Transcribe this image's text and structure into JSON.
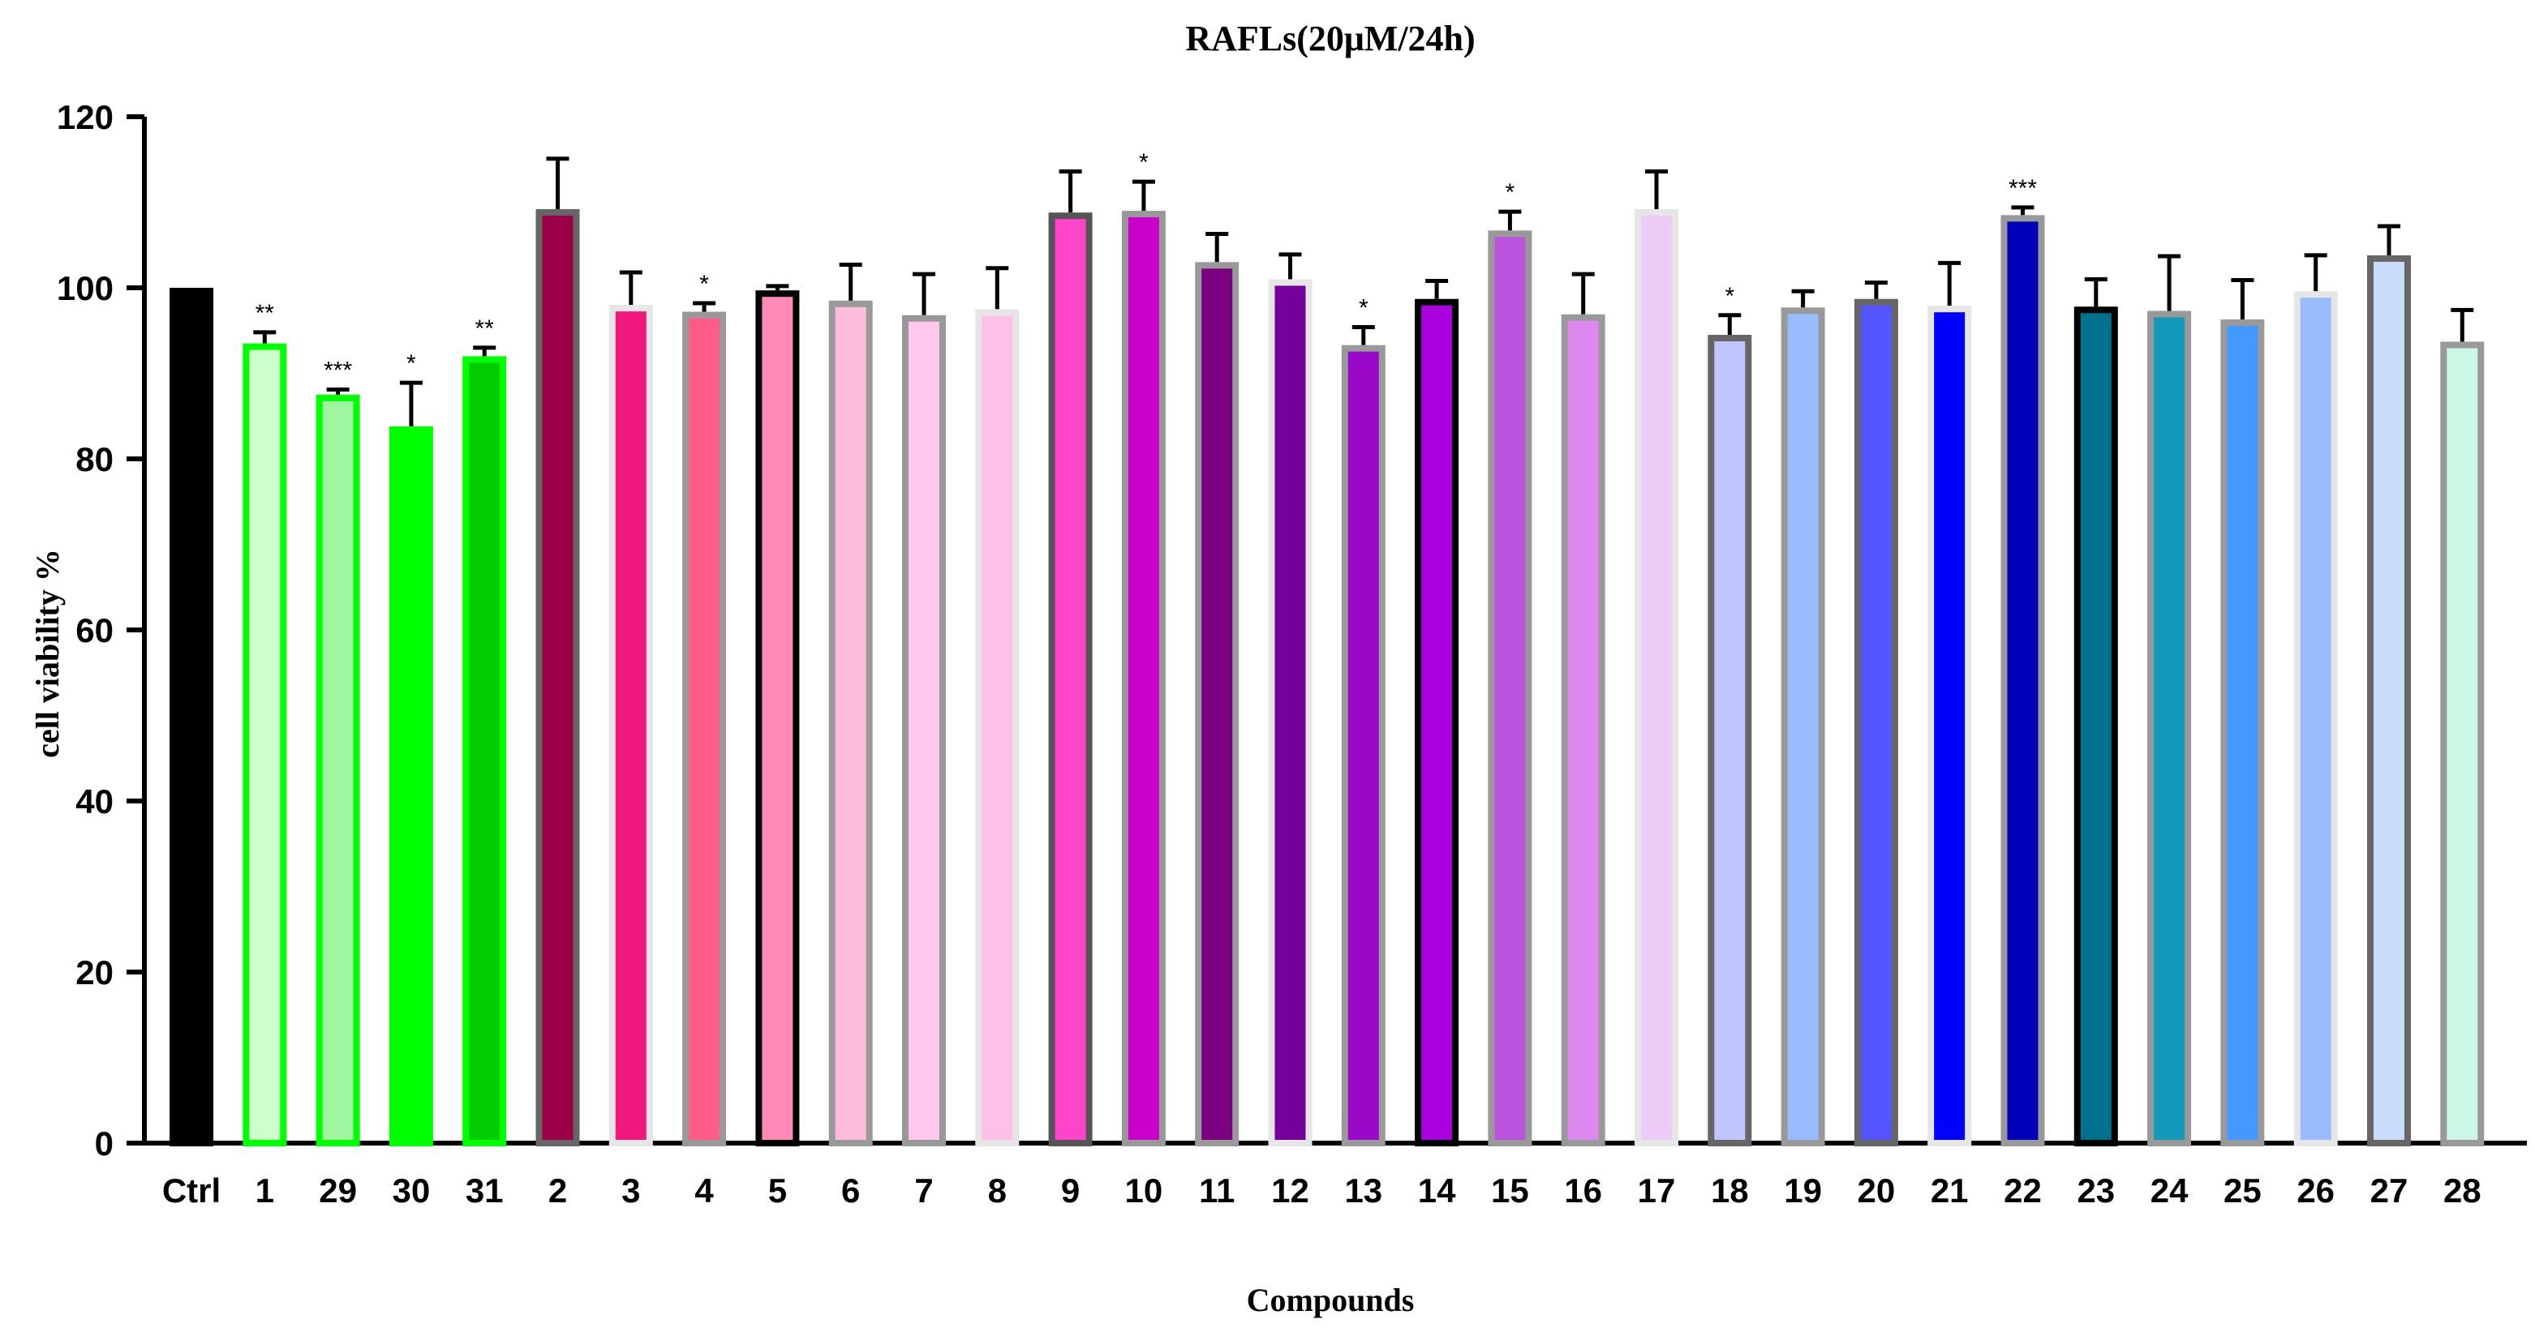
{
  "chart_data": {
    "type": "bar",
    "title": "RAFLs(20μM/24h)",
    "xlabel": "Compounds",
    "ylabel": "cell viability %",
    "ylim": [
      0,
      120
    ],
    "yticks": [
      "0",
      "20",
      "40",
      "60",
      "80",
      "100",
      "120"
    ],
    "categories": [
      "Ctrl",
      "1",
      "29",
      "30",
      "31",
      "2",
      "3",
      "4",
      "5",
      "6",
      "7",
      "8",
      "9",
      "10",
      "11",
      "12",
      "13",
      "14",
      "15",
      "16",
      "17",
      "18",
      "19",
      "20",
      "21",
      "22",
      "23",
      "24",
      "25",
      "26",
      "27",
      "28"
    ],
    "values": [
      100,
      93.5,
      87.5,
      83.8,
      92,
      109.2,
      98,
      97.2,
      99.7,
      98.5,
      96.8,
      97.5,
      108.8,
      109,
      103,
      101,
      93.3,
      98.7,
      106.7,
      96.9,
      109.2,
      94.5,
      97.7,
      98.7,
      97.9,
      108.5,
      97.8,
      97.3,
      96.3,
      99.6,
      103.8,
      93.7
    ],
    "errors": [
      0,
      1.3,
      0.6,
      5.1,
      1,
      5.9,
      3.8,
      1,
      0.5,
      4.2,
      4.8,
      4.8,
      4.8,
      3.4,
      3.3,
      2.9,
      2.1,
      2.1,
      2.2,
      4.7,
      4.4,
      2.3,
      1.9,
      1.9,
      5,
      0.9,
      3.2,
      6.4,
      4.6,
      4.2,
      3.4,
      3.7
    ],
    "significance": [
      "",
      "**",
      "***",
      "*",
      "**",
      "",
      "",
      "*",
      "",
      "",
      "",
      "",
      "",
      "*",
      "",
      "",
      "*",
      "",
      "*",
      "",
      "",
      "*",
      "",
      "",
      "",
      "***",
      "",
      "",
      "",
      "",
      "",
      ""
    ],
    "fill_colors": [
      "#000000",
      "#ccffcc",
      "#a0f5a0",
      "#00ff00",
      "#00cc00",
      "#9c0048",
      "#f0187c",
      "#ff5c8a",
      "#ff8ab8",
      "#ffbcdc",
      "#ffc8ec",
      "#ffc0e8",
      "#ff44cc",
      "#cc00cc",
      "#7a0080",
      "#76009c",
      "#9a08c8",
      "#aa00dd",
      "#bb55dd",
      "#dd88ee",
      "#ecccf6",
      "#c0c4ff",
      "#99bbff",
      "#5555ff",
      "#0000ff",
      "#0000bb",
      "#007090",
      "#1499bb",
      "#4499ff",
      "#99bbff",
      "#c8ddfa",
      "#ccf7e6"
    ],
    "border_colors": [
      "#000000",
      "#00ff00",
      "#00ff00",
      "#00ff00",
      "#00ff00",
      "#666666",
      "#e6e6e6",
      "#999999",
      "#000000",
      "#999999",
      "#999999",
      "#e6e6e6",
      "#555555",
      "#999999",
      "#999999",
      "#e6e6e6",
      "#999999",
      "#000000",
      "#999999",
      "#999999",
      "#e6e6e6",
      "#666666",
      "#999999",
      "#666666",
      "#e6e6e6",
      "#999999",
      "#000000",
      "#999999",
      "#999999",
      "#e6e6e6",
      "#666666",
      "#999999"
    ]
  }
}
